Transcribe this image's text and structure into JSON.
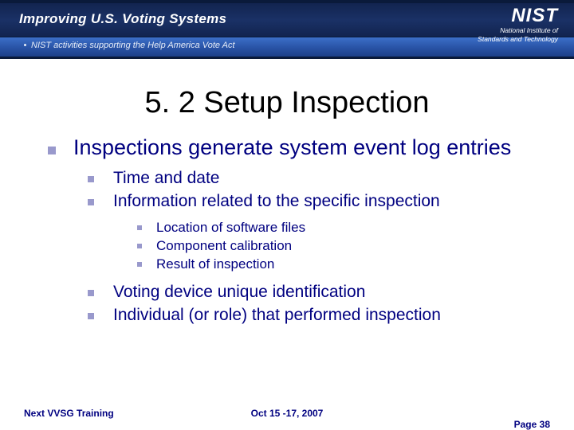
{
  "colors": {
    "bullet": "#9999cc",
    "body_text": "#000080",
    "title_text": "#000000",
    "banner_dark": "#0a1a3a",
    "banner_blue_grad_top": "#3c6fc8",
    "banner_blue_grad_bot": "#1c3f88",
    "white": "#ffffff"
  },
  "typography": {
    "title_fontsize": 38,
    "lvl1_fontsize": 27,
    "lvl2_fontsize": 21,
    "lvl3_fontsize": 17,
    "footer_fontsize": 12
  },
  "banner": {
    "title": "Improving U.S. Voting Systems",
    "subtitle": "NIST activities supporting the Help America Vote Act",
    "logo_text": "NIST",
    "logo_sub1": "National Institute of",
    "logo_sub2": "Standards and Technology"
  },
  "title": "5. 2 Setup Inspection",
  "bullets": {
    "lvl1": "Inspections generate system event log entries",
    "lvl2a": [
      "Time and date",
      "Information related to the specific inspection"
    ],
    "lvl3": [
      "Location of software files",
      "Component calibration",
      "Result of inspection"
    ],
    "lvl2b": [
      "Voting device unique identification",
      "Individual (or role) that performed inspection"
    ]
  },
  "footer": {
    "left": "Next VVSG Training",
    "center": "Oct 15 -17, 2007",
    "right": "Page 38"
  }
}
